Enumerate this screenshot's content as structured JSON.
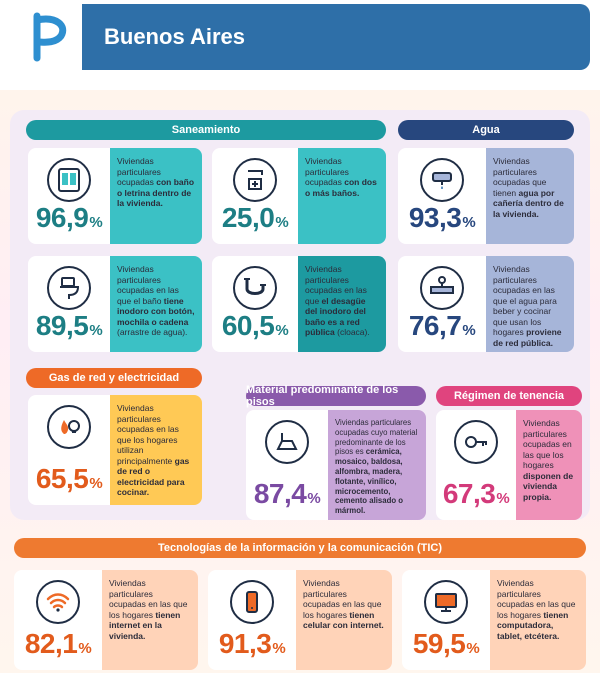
{
  "header": {
    "title": "Buenos Aires"
  },
  "colors": {
    "primary": "#2e6fa8",
    "saneamiento": "#1d9aa0",
    "agua": "#27477e",
    "gas": "#ee6a27",
    "pisos": "#8a5aab",
    "tenencia": "#e0447e",
    "tic": "#ee7a30"
  },
  "sections": {
    "saneamiento": "Saneamiento",
    "agua": "Agua",
    "gas": "Gas de red y electricidad",
    "pisos": "Material predominante de los pisos",
    "tenencia": "Régimen de tenencia",
    "tic": "Tecnologías de la información y la comunicación (TIC)"
  },
  "cards": {
    "bano": {
      "icon": "bathroom-icon",
      "value": "96,9",
      "sign": "%",
      "text_plain": "Viviendas particulares ocupadas ",
      "text_bold": "con baño o letrina dentro de la vivienda."
    },
    "dos_banos": {
      "icon": "shower-icon",
      "value": "25,0",
      "sign": "%",
      "text_plain": "Viviendas particulares ocupadas ",
      "text_bold": "con dos o más baños."
    },
    "agua_caneria": {
      "icon": "water-tank-icon",
      "value": "93,3",
      "sign": "%",
      "text_plain": "Viviendas particulares ocupadas que tienen ",
      "text_bold": "agua por cañería dentro de la vivienda."
    },
    "inodoro": {
      "icon": "toilet-icon",
      "value": "89,5",
      "sign": "%",
      "text_plain": "Viviendas particulares ocupadas en las que el baño ",
      "text_bold": "tiene inodoro con botón, mochila o cadena",
      "text_after": " (arrastre de agua)."
    },
    "desague": {
      "icon": "drain-pipe-icon",
      "value": "60,5",
      "sign": "%",
      "text_plain": "Viviendas particulares ocupadas en las que ",
      "text_bold": "el desagüe del inodoro del baño es a red pública",
      "text_after": " (cloaca)."
    },
    "agua_red": {
      "icon": "water-pipe-icon",
      "value": "76,7",
      "sign": "%",
      "text_plain": "Viviendas particulares ocupadas en las que el agua para beber y cocinar que usan los hogares ",
      "text_bold": "proviene de red pública."
    },
    "gas": {
      "icon": "flame-bulb-icon",
      "value": "65,5",
      "sign": "%",
      "text_plain": "Viviendas particulares ocupadas en las que los hogares utilizan principalmente ",
      "text_bold": "gas de red o electricidad para cocinar."
    },
    "pisos": {
      "icon": "floor-icon",
      "value": "87,4",
      "sign": "%",
      "text_plain": "Viviendas particulares ocupadas cuyo material predominante de los pisos es ",
      "text_bold": "cerámica, mosaico, baldosa, alfombra, madera, flotante, vinílico, microcemento, cemento alisado o mármol."
    },
    "tenencia": {
      "icon": "key-icon",
      "value": "67,3",
      "sign": "%",
      "text_plain": "Viviendas particulares ocupadas en las que los hogares ",
      "text_bold": "disponen de vivienda propia."
    },
    "internet": {
      "icon": "wifi-icon",
      "value": "82,1",
      "sign": "%",
      "text_plain": "Viviendas particulares ocupadas en las que los hogares ",
      "text_bold": "tienen internet en la vivienda."
    },
    "celular": {
      "icon": "mobile-phone-icon",
      "value": "91,3",
      "sign": "%",
      "text_plain": "Viviendas particulares ocupadas en las que los hogares ",
      "text_bold": "tienen celular con internet."
    },
    "computadora": {
      "icon": "computer-icon",
      "value": "59,5",
      "sign": "%",
      "text_plain": "Viviendas particulares ocupadas en las que los hogares ",
      "text_bold": "tienen computadora, tablet, etcétera."
    }
  }
}
